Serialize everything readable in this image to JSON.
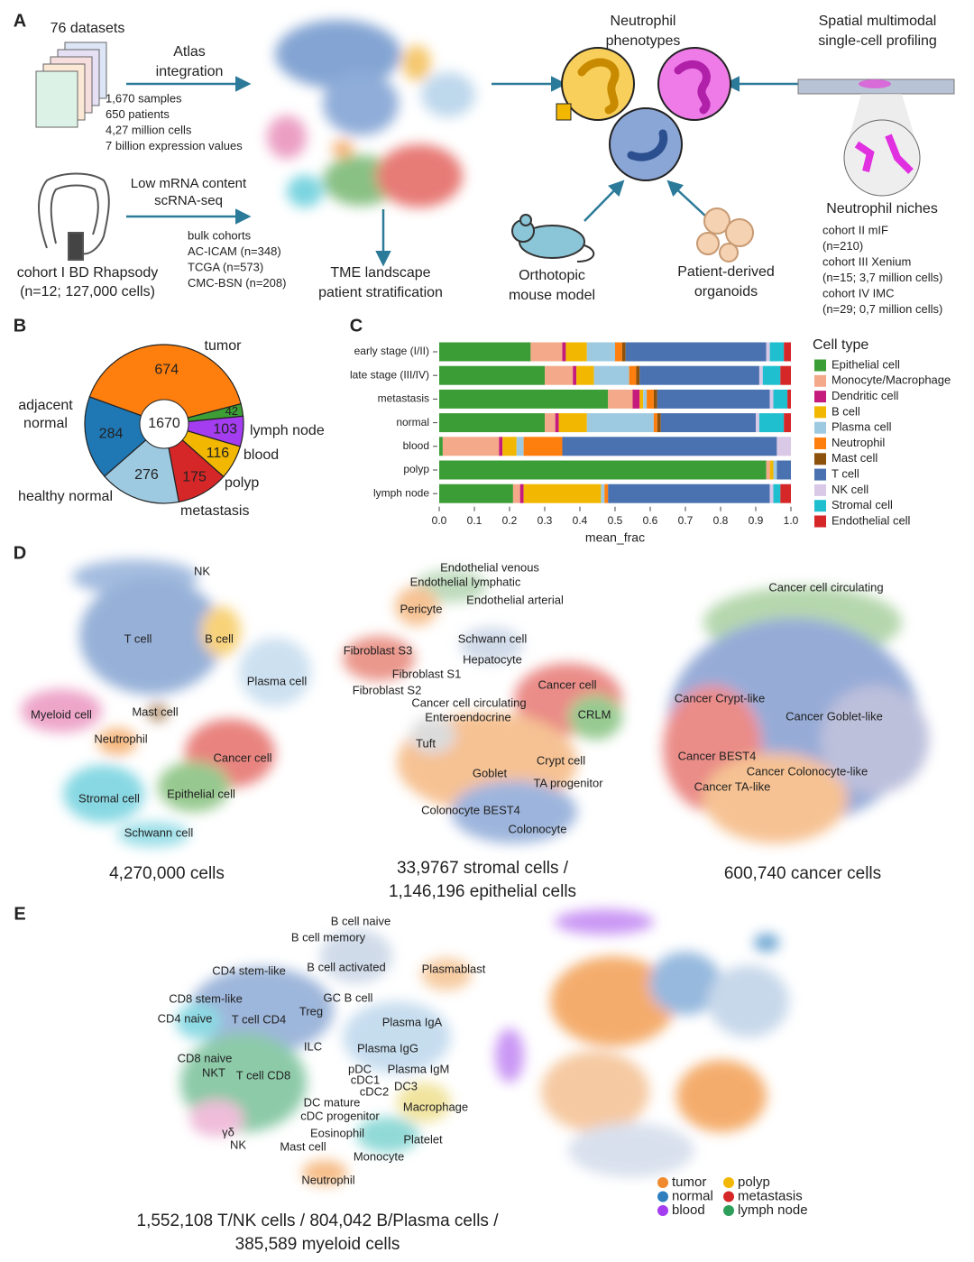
{
  "panel_labels": [
    "A",
    "B",
    "C",
    "D",
    "E"
  ],
  "panel_a": {
    "datasets": "76 datasets",
    "atlas_integration": [
      "Atlas",
      "integration"
    ],
    "atlas_stats": [
      "1,670 samples",
      "650 patients",
      "4,27 million cells",
      "7 billion expression values"
    ],
    "low_mrna": [
      "Low mRNA content",
      "scRNA-seq"
    ],
    "bulk": [
      "bulk cohorts",
      "AC-ICAM (n=348)",
      "TCGA (n=573)",
      "CMC-BSN (n=208)"
    ],
    "cohort1": [
      "cohort I BD Rhapsody",
      "(n=12; 127,000 cells)"
    ],
    "tme": [
      "TME landscape",
      "patient stratification"
    ],
    "neutrophil_phenotypes": [
      "Neutrophil",
      "phenotypes"
    ],
    "spatial": [
      "Spatial multimodal",
      "single-cell profiling"
    ],
    "niches_title": "Neutrophil niches",
    "niches": [
      "cohort II mIF",
      "(n=210)",
      "cohort III Xenium",
      "(n=15; 3,7 million cells)",
      "cohort IV IMC",
      "(n=29; 0,7 million cells)"
    ],
    "mouse": [
      "Orthotopic",
      "mouse model"
    ],
    "organoids": [
      "Patient-derived",
      "organoids"
    ]
  },
  "chart_data": [
    {
      "type": "pie",
      "categories": [
        "tumor",
        "lymph node",
        "blood",
        "polyp",
        "metastasis",
        "healthy normal",
        "adjacent normal"
      ],
      "values": [
        674,
        42,
        103,
        116,
        175,
        276,
        284
      ],
      "colors": [
        "#ff7f0e",
        "#3c9e35",
        "#a43cf0",
        "#f2b701",
        "#d62728",
        "#9ecae1",
        "#1f77b4"
      ],
      "total": 1670
    },
    {
      "type": "bar",
      "orientation": "horizontal",
      "stacked": true,
      "categories": [
        "early stage (I/II)",
        "late stage (III/IV)",
        "metastasis",
        "normal",
        "blood",
        "polyp",
        "lymph node"
      ],
      "series": [
        {
          "name": "Epithelial cell",
          "color": "#3b9d35",
          "values": [
            0.26,
            0.3,
            0.48,
            0.3,
            0.01,
            0.93,
            0.21
          ]
        },
        {
          "name": "Monocyte/Macrophage",
          "color": "#f4a98a",
          "values": [
            0.09,
            0.08,
            0.07,
            0.03,
            0.16,
            0.01,
            0.02
          ]
        },
        {
          "name": "Dendritic cell",
          "color": "#c51b7d",
          "values": [
            0.01,
            0.01,
            0.02,
            0.01,
            0.01,
            0,
            0.01
          ]
        },
        {
          "name": "B cell",
          "color": "#f2b701",
          "values": [
            0.06,
            0.05,
            0.01,
            0.08,
            0.04,
            0.01,
            0.22
          ]
        },
        {
          "name": "Plasma cell",
          "color": "#9ecae1",
          "values": [
            0.08,
            0.1,
            0.01,
            0.19,
            0.02,
            0.01,
            0.01
          ]
        },
        {
          "name": "Neutrophil",
          "color": "#ff7f0e",
          "values": [
            0.02,
            0.02,
            0.02,
            0.01,
            0.11,
            0,
            0.01
          ]
        },
        {
          "name": "Mast cell",
          "color": "#8c510a",
          "values": [
            0.01,
            0.01,
            0.01,
            0.01,
            0,
            0,
            0
          ]
        },
        {
          "name": "T cell",
          "color": "#4a72b0",
          "values": [
            0.4,
            0.34,
            0.32,
            0.27,
            0.61,
            0.04,
            0.46
          ]
        },
        {
          "name": "NK cell",
          "color": "#d9c8e6",
          "values": [
            0.01,
            0.01,
            0.01,
            0.01,
            0.04,
            0,
            0.01
          ]
        },
        {
          "name": "Stromal cell",
          "color": "#1fbfd0",
          "values": [
            0.04,
            0.05,
            0.04,
            0.07,
            0,
            0,
            0.02
          ]
        },
        {
          "name": "Endothelial cell",
          "color": "#d62728",
          "values": [
            0.02,
            0.03,
            0.01,
            0.02,
            0,
            0,
            0.03
          ]
        }
      ],
      "xlim": [
        0,
        1
      ],
      "xticks": [
        {
          "value": 0,
          "label": "0.0"
        },
        0.1,
        0.2,
        0.3,
        0.4,
        0.5,
        0.6,
        0.7,
        0.8,
        0.9,
        {
          "value": 1,
          "label": "1.0"
        }
      ],
      "xlabel": "mean_frac",
      "legend_title": "Cell type",
      "legend": "right"
    }
  ],
  "panel_d": {
    "all_cells": {
      "labels": [
        "NK",
        "T cell",
        "B cell",
        "Plasma cell",
        "Myeloid cell",
        "Mast cell",
        "Neutrophil",
        "Cancer cell",
        "Epithelial cell",
        "Stromal cell",
        "Schwann cell"
      ],
      "caption": [
        "4,270,000 cells"
      ]
    },
    "stromal_epithelial": {
      "labels": [
        "Endothelial venous",
        "Endothelial lymphatic",
        "Endothelial arterial",
        "Pericyte",
        "Schwann cell",
        "Fibroblast S3",
        "Hepatocyte",
        "Fibroblast S1",
        "Fibroblast S2",
        "Cancer cell",
        "Cancer cell circulating",
        "Enteroendocrine",
        "CRLM",
        "Tuft",
        "Crypt cell",
        "Goblet",
        "TA progenitor",
        "Colonocyte BEST4",
        "Colonocyte"
      ],
      "caption": [
        "33,9767 stromal cells /",
        "1,146,196 epithelial cells"
      ]
    },
    "cancer": {
      "labels": [
        "Cancer cell circulating",
        "Cancer Crypt-like",
        "Cancer Goblet-like",
        "Cancer BEST4",
        "Cancer Colonocyte-like",
        "Cancer TA-like"
      ],
      "caption": [
        "600,740  cancer cells"
      ]
    }
  },
  "panel_e": {
    "labels": [
      "B cell naive",
      "B cell memory",
      "CD4 stem-like",
      "B cell activated",
      "Plasmablast",
      "CD8 stem-like",
      "GC B cell",
      "Treg",
      "CD4 naive",
      "T cell CD4",
      "Plasma IgA",
      "ILC",
      "Plasma IgG",
      "CD8 naive",
      "pDC",
      "Plasma IgM",
      "NKT",
      "T cell CD8",
      "cDC1",
      "cDC2",
      "DC3",
      "DC mature",
      "Macrophage",
      "cDC progenitor",
      "γδ",
      "Eosinophil",
      "Platelet",
      "NK",
      "Mast cell",
      "Monocyte",
      "Neutrophil"
    ],
    "caption": [
      "1,552,108 T/NK cells / 804,042 B/Plasma cells /",
      "385,589 myeloid cells"
    ],
    "legend": [
      {
        "name": "tumor",
        "color": "#f08a2e"
      },
      {
        "name": "polyp",
        "color": "#f2b701"
      },
      {
        "name": "normal",
        "color": "#2f7fbf"
      },
      {
        "name": "metastasis",
        "color": "#d62728"
      },
      {
        "name": "blood",
        "color": "#a43cf0"
      },
      {
        "name": "lymph node",
        "color": "#2e9e5b"
      }
    ]
  }
}
